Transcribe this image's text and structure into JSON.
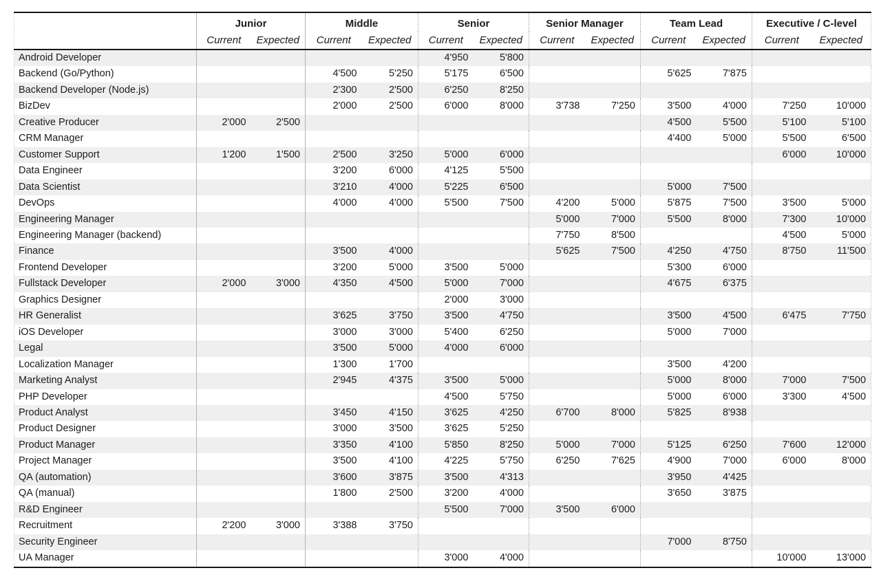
{
  "page": {
    "background": "#ffffff",
    "colors": {
      "stripe": "#efefef",
      "heavy_border": "#161616",
      "separator": "#b3b3b3",
      "text": "#1c1c1c"
    }
  },
  "table": {
    "corner_label": "",
    "groups": [
      {
        "label": "Junior"
      },
      {
        "label": "Middle"
      },
      {
        "label": "Senior"
      },
      {
        "label": "Senior Manager"
      },
      {
        "label": "Team Lead"
      },
      {
        "label": "Executive / C-level"
      }
    ],
    "sub_headers": [
      "Current",
      "Expected"
    ],
    "rows": [
      {
        "label": "Android Developer",
        "values": [
          "",
          "",
          "",
          "",
          "4'950",
          "5'800",
          "",
          "",
          "",
          "",
          "",
          ""
        ]
      },
      {
        "label": "Backend (Go/Python)",
        "values": [
          "",
          "",
          "4'500",
          "5'250",
          "5'175",
          "6'500",
          "",
          "",
          "5'625",
          "7'875",
          "",
          ""
        ]
      },
      {
        "label": "Backend Developer (Node.js)",
        "values": [
          "",
          "",
          "2'300",
          "2'500",
          "6'250",
          "8'250",
          "",
          "",
          "",
          "",
          "",
          ""
        ]
      },
      {
        "label": "BizDev",
        "values": [
          "",
          "",
          "2'000",
          "2'500",
          "6'000",
          "8'000",
          "3'738",
          "7'250",
          "3'500",
          "4'000",
          "7'250",
          "10'000"
        ]
      },
      {
        "label": "Creative Producer",
        "values": [
          "2'000",
          "2'500",
          "",
          "",
          "",
          "",
          "",
          "",
          "4'500",
          "5'500",
          "5'100",
          "5'100"
        ]
      },
      {
        "label": "CRM Manager",
        "values": [
          "",
          "",
          "",
          "",
          "",
          "",
          "",
          "",
          "4'400",
          "5'000",
          "5'500",
          "6'500"
        ]
      },
      {
        "label": "Customer Support",
        "values": [
          "1'200",
          "1'500",
          "2'500",
          "3'250",
          "5'000",
          "6'000",
          "",
          "",
          "",
          "",
          "6'000",
          "10'000"
        ]
      },
      {
        "label": "Data Engineer",
        "values": [
          "",
          "",
          "3'200",
          "6'000",
          "4'125",
          "5'500",
          "",
          "",
          "",
          "",
          "",
          ""
        ]
      },
      {
        "label": "Data Scientist",
        "values": [
          "",
          "",
          "3'210",
          "4'000",
          "5'225",
          "6'500",
          "",
          "",
          "5'000",
          "7'500",
          "",
          ""
        ]
      },
      {
        "label": "DevOps",
        "values": [
          "",
          "",
          "4'000",
          "4'000",
          "5'500",
          "7'500",
          "4'200",
          "5'000",
          "5'875",
          "7'500",
          "3'500",
          "5'000"
        ]
      },
      {
        "label": "Engineering Manager",
        "values": [
          "",
          "",
          "",
          "",
          "",
          "",
          "5'000",
          "7'000",
          "5'500",
          "8'000",
          "7'300",
          "10'000"
        ]
      },
      {
        "label": "Engineering Manager (backend)",
        "values": [
          "",
          "",
          "",
          "",
          "",
          "",
          "7'750",
          "8'500",
          "",
          "",
          "4'500",
          "5'000"
        ]
      },
      {
        "label": "Finance",
        "values": [
          "",
          "",
          "3'500",
          "4'000",
          "",
          "",
          "5'625",
          "7'500",
          "4'250",
          "4'750",
          "8'750",
          "11'500"
        ]
      },
      {
        "label": "Frontend Developer",
        "values": [
          "",
          "",
          "3'200",
          "5'000",
          "3'500",
          "5'000",
          "",
          "",
          "5'300",
          "6'000",
          "",
          ""
        ]
      },
      {
        "label": "Fullstack Developer",
        "values": [
          "2'000",
          "3'000",
          "4'350",
          "4'500",
          "5'000",
          "7'000",
          "",
          "",
          "4'675",
          "6'375",
          "",
          ""
        ]
      },
      {
        "label": "Graphics Designer",
        "values": [
          "",
          "",
          "",
          "",
          "2'000",
          "3'000",
          "",
          "",
          "",
          "",
          "",
          ""
        ]
      },
      {
        "label": "HR Generalist",
        "values": [
          "",
          "",
          "3'625",
          "3'750",
          "3'500",
          "4'750",
          "",
          "",
          "3'500",
          "4'500",
          "6'475",
          "7'750"
        ]
      },
      {
        "label": "iOS Developer",
        "values": [
          "",
          "",
          "3'000",
          "3'000",
          "5'400",
          "6'250",
          "",
          "",
          "5'000",
          "7'000",
          "",
          ""
        ]
      },
      {
        "label": "Legal",
        "values": [
          "",
          "",
          "3'500",
          "5'000",
          "4'000",
          "6'000",
          "",
          "",
          "",
          "",
          "",
          ""
        ]
      },
      {
        "label": "Localization Manager",
        "values": [
          "",
          "",
          "1'300",
          "1'700",
          "",
          "",
          "",
          "",
          "3'500",
          "4'200",
          "",
          ""
        ]
      },
      {
        "label": "Marketing Analyst",
        "values": [
          "",
          "",
          "2'945",
          "4'375",
          "3'500",
          "5'000",
          "",
          "",
          "5'000",
          "8'000",
          "7'000",
          "7'500"
        ]
      },
      {
        "label": "PHP Developer",
        "values": [
          "",
          "",
          "",
          "",
          "4'500",
          "5'750",
          "",
          "",
          "5'000",
          "6'000",
          "3'300",
          "4'500"
        ]
      },
      {
        "label": "Product Analyst",
        "values": [
          "",
          "",
          "3'450",
          "4'150",
          "3'625",
          "4'250",
          "6'700",
          "8'000",
          "5'825",
          "8'938",
          "",
          ""
        ]
      },
      {
        "label": "Product Designer",
        "values": [
          "",
          "",
          "3'000",
          "3'500",
          "3'625",
          "5'250",
          "",
          "",
          "",
          "",
          "",
          ""
        ]
      },
      {
        "label": "Product Manager",
        "values": [
          "",
          "",
          "3'350",
          "4'100",
          "5'850",
          "8'250",
          "5'000",
          "7'000",
          "5'125",
          "6'250",
          "7'600",
          "12'000"
        ]
      },
      {
        "label": "Project Manager",
        "values": [
          "",
          "",
          "3'500",
          "4'100",
          "4'225",
          "5'750",
          "6'250",
          "7'625",
          "4'900",
          "7'000",
          "6'000",
          "8'000"
        ]
      },
      {
        "label": "QA (automation)",
        "values": [
          "",
          "",
          "3'600",
          "3'875",
          "3'500",
          "4'313",
          "",
          "",
          "3'950",
          "4'425",
          "",
          ""
        ]
      },
      {
        "label": "QA (manual)",
        "values": [
          "",
          "",
          "1'800",
          "2'500",
          "3'200",
          "4'000",
          "",
          "",
          "3'650",
          "3'875",
          "",
          ""
        ]
      },
      {
        "label": "R&D Engineer",
        "values": [
          "",
          "",
          "",
          "",
          "5'500",
          "7'000",
          "3'500",
          "6'000",
          "",
          "",
          "",
          ""
        ]
      },
      {
        "label": "Recruitment",
        "values": [
          "2'200",
          "3'000",
          "3'388",
          "3'750",
          "",
          "",
          "",
          "",
          "",
          "",
          "",
          ""
        ]
      },
      {
        "label": "Security Engineer",
        "values": [
          "",
          "",
          "",
          "",
          "",
          "",
          "",
          "",
          "7'000",
          "8'750",
          "",
          ""
        ]
      },
      {
        "label": "UA Manager",
        "values": [
          "",
          "",
          "",
          "",
          "3'000",
          "4'000",
          "",
          "",
          "",
          "",
          "10'000",
          "13'000"
        ]
      }
    ]
  }
}
